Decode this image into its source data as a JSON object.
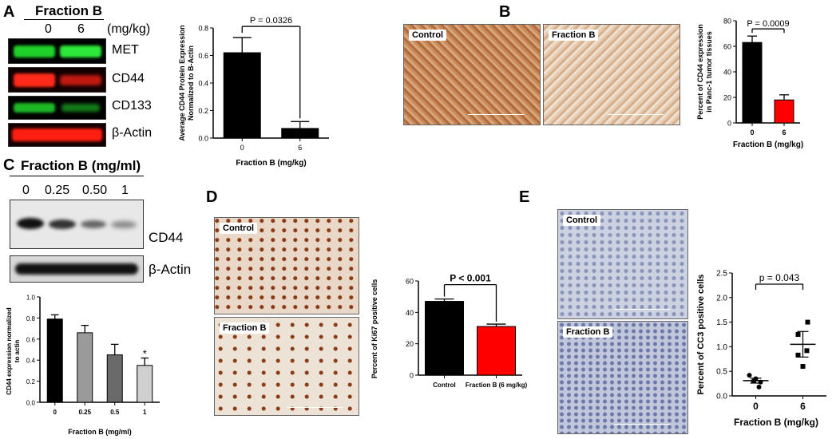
{
  "panels": {
    "A": "A",
    "B": "B",
    "C": "C",
    "D": "D",
    "E": "E"
  },
  "panelA": {
    "header": "Fraction B",
    "doses": [
      "0",
      "6"
    ],
    "unit": "(mg/kg)",
    "bands": [
      "MET",
      "CD44",
      "CD133",
      "β-Actin"
    ],
    "colors": {
      "green": "#1fcf2a",
      "red": "#ff2a1a"
    }
  },
  "panelB": {
    "image_labels": [
      "Control",
      "Fraction B"
    ]
  },
  "panelC": {
    "header": "Fraction B (mg/ml)",
    "doses": [
      "0",
      "0.25",
      "0.50",
      "1"
    ],
    "bands": [
      "CD44",
      "β-Actin"
    ]
  },
  "panelD": {
    "image_labels": [
      "Control",
      "Fraction B"
    ]
  },
  "panelE": {
    "image_labels": [
      "Control",
      "Fraction B"
    ]
  },
  "chart_data": [
    {
      "id": "A",
      "type": "bar",
      "categories": [
        "0",
        "6"
      ],
      "values": [
        0.62,
        0.07
      ],
      "errors": [
        0.11,
        0.05
      ],
      "colors": [
        "#000000",
        "#000000"
      ],
      "xlabel": "Fraction B  (mg/kg)",
      "ylabel": "Average CD44 Protein Expression Normalized to B-Actin",
      "ylim": [
        0,
        0.8
      ],
      "yticks": [
        "0.0",
        "0.2",
        "0.4",
        "0.6",
        "0.8"
      ],
      "annotation": "P = 0.0326"
    },
    {
      "id": "B",
      "type": "bar",
      "categories": [
        "0",
        "6"
      ],
      "values": [
        63,
        18
      ],
      "errors": [
        5,
        4
      ],
      "colors": [
        "#000000",
        "#ff0000"
      ],
      "xlabel": "Fraction B (mg/kg)",
      "ylabel": "Percent of CD44 expression in Panc-1 tumor tissues",
      "ylim": [
        0,
        80
      ],
      "yticks": [
        "0",
        "20",
        "40",
        "60",
        "80"
      ],
      "annotation": "P = 0.0009"
    },
    {
      "id": "C",
      "type": "bar",
      "categories": [
        "0",
        "0.25",
        "0.5",
        "1"
      ],
      "values": [
        0.79,
        0.66,
        0.45,
        0.35
      ],
      "errors": [
        0.04,
        0.07,
        0.1,
        0.07
      ],
      "colors": [
        "#000000",
        "#9a9a9a",
        "#6a6a6a",
        "#d0d0d0"
      ],
      "xlabel": "Fraction B (mg/ml)",
      "ylabel": "CD44 expression normalized to actin",
      "ylim": [
        0,
        1.0
      ],
      "yticks": [
        "0.0",
        "0.2",
        "0.4",
        "0.6",
        "0.8",
        "1.0"
      ],
      "marker": "*"
    },
    {
      "id": "D",
      "type": "bar",
      "categories": [
        "Control",
        "Fraction B (6 mg/kg)"
      ],
      "values": [
        47,
        31
      ],
      "errors": [
        1.5,
        1.5
      ],
      "colors": [
        "#000000",
        "#ff0000"
      ],
      "ylabel": "Percent of Ki67 positive cells",
      "ylim": [
        0,
        60
      ],
      "yticks": [
        "0",
        "20",
        "40",
        "60"
      ],
      "annotation": "P < 0.001"
    },
    {
      "id": "E",
      "type": "scatter",
      "categories": [
        "0",
        "6"
      ],
      "points": [
        [
          0.42,
          0.18,
          0.3,
          0.28,
          0.35
        ],
        [
          1.5,
          1.25,
          0.92,
          0.83,
          0.6
        ]
      ],
      "means": [
        0.31,
        1.05
      ],
      "sems": [
        0.05,
        0.26
      ],
      "markers": [
        "circle",
        "square"
      ],
      "xlabel": "Fraction B (mg/kg)",
      "ylabel": "Percent of CC3 positive cells",
      "ylim": [
        0,
        2.5
      ],
      "yticks": [
        "0.0",
        "0.5",
        "1.0",
        "1.5",
        "2.0",
        "2.5"
      ],
      "annotation": "p = 0.043"
    }
  ]
}
